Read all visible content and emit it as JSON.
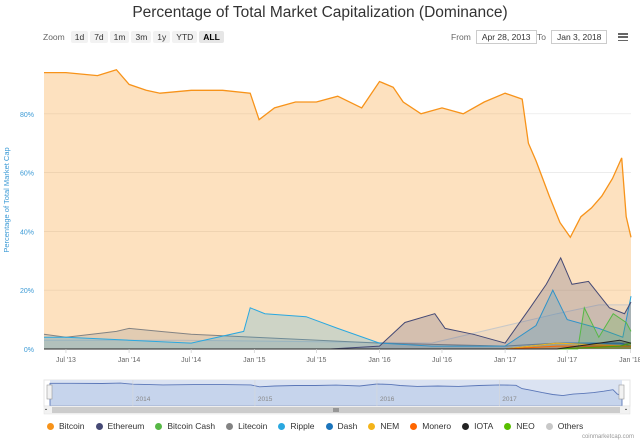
{
  "title": "Percentage of Total Market Capitalization (Dominance)",
  "zoom": {
    "label": "Zoom",
    "buttons": [
      "1d",
      "7d",
      "1m",
      "3m",
      "1y",
      "YTD",
      "ALL"
    ],
    "active": "ALL"
  },
  "range": {
    "from_label": "From",
    "from_value": "Apr 28, 2013",
    "to_label": "To",
    "to_value": "Jan 3, 2018"
  },
  "menu_icon": "hamburger-icon",
  "credit": "coinmarketcap.com",
  "navigator": {
    "years": [
      "2014",
      "2015",
      "2016",
      "2017"
    ],
    "handle_icon": "grip-icon"
  },
  "chart_data": {
    "type": "area",
    "title": "Percentage of Total Market Capitalization (Dominance)",
    "ylabel": "Percentage of Total Market Cap",
    "ylim": [
      0,
      100
    ],
    "y_ticks": [
      "0%",
      "20%",
      "40%",
      "60%",
      "80%"
    ],
    "x_ticks": [
      "Jul '13",
      "Jan '14",
      "Jul '14",
      "Jan '15",
      "Jul '15",
      "Jan '16",
      "Jul '16",
      "Jan '17",
      "Jul '17",
      "Jan '18"
    ],
    "x_range": [
      "2013-04-28",
      "2018-01-03"
    ],
    "grid": true,
    "legend_position": "bottom",
    "series": [
      {
        "name": "Bitcoin",
        "color": "#f7931a",
        "x": [
          "2013-04-28",
          "2013-07-01",
          "2013-10-01",
          "2013-11-25",
          "2014-01-01",
          "2014-02-20",
          "2014-04-01",
          "2014-07-01",
          "2014-10-01",
          "2014-12-20",
          "2015-01-15",
          "2015-03-01",
          "2015-05-01",
          "2015-07-01",
          "2015-09-01",
          "2015-11-10",
          "2016-01-01",
          "2016-02-10",
          "2016-03-10",
          "2016-05-01",
          "2016-07-01",
          "2016-09-01",
          "2016-11-01",
          "2017-01-01",
          "2017-02-20",
          "2017-03-10",
          "2017-04-01",
          "2017-05-10",
          "2017-06-10",
          "2017-07-10",
          "2017-08-10",
          "2017-09-10",
          "2017-10-10",
          "2017-11-10",
          "2017-12-07",
          "2017-12-20",
          "2018-01-03"
        ],
        "values": [
          94,
          94,
          93,
          95,
          90,
          88,
          87,
          88,
          88,
          87,
          78,
          82,
          84,
          84,
          86,
          82,
          91,
          89,
          84,
          80,
          82,
          80,
          84,
          87,
          85,
          70,
          64,
          52,
          43,
          38,
          45,
          48,
          52,
          58,
          65,
          45,
          38
        ]
      },
      {
        "name": "Ethereum",
        "color": "#464a75",
        "x": [
          "2013-04-28",
          "2015-08-10",
          "2016-01-01",
          "2016-03-15",
          "2016-06-10",
          "2016-07-10",
          "2016-10-01",
          "2017-01-01",
          "2017-03-15",
          "2017-05-01",
          "2017-06-12",
          "2017-07-15",
          "2017-09-01",
          "2017-11-01",
          "2017-12-15",
          "2018-01-03"
        ],
        "values": [
          0,
          0,
          1,
          9,
          12,
          7,
          5,
          2,
          14,
          22,
          31,
          22,
          23,
          14,
          12,
          16
        ]
      },
      {
        "name": "Bitcoin Cash",
        "color": "#57b846",
        "x": [
          "2013-04-28",
          "2017-08-01",
          "2017-08-20",
          "2017-10-01",
          "2017-11-12",
          "2017-12-20",
          "2018-01-03"
        ],
        "values": [
          0,
          0,
          14,
          4,
          12,
          9,
          6
        ]
      },
      {
        "name": "Litecoin",
        "color": "#838383",
        "x": [
          "2013-04-28",
          "2013-07-01",
          "2013-11-25",
          "2014-01-01",
          "2014-04-01",
          "2014-07-01",
          "2015-01-01",
          "2016-01-01",
          "2017-01-01",
          "2017-06-01",
          "2017-12-15",
          "2018-01-03"
        ],
        "values": [
          5,
          4,
          6,
          7,
          6,
          5,
          4,
          2,
          1,
          2,
          2,
          2
        ]
      },
      {
        "name": "Ripple",
        "color": "#2aa8e0",
        "x": [
          "2013-04-28",
          "2013-07-01",
          "2014-01-01",
          "2014-07-01",
          "2014-12-01",
          "2014-12-20",
          "2015-02-01",
          "2015-06-01",
          "2015-09-01",
          "2016-01-01",
          "2016-06-01",
          "2017-01-01",
          "2017-04-01",
          "2017-05-20",
          "2017-07-01",
          "2017-10-01",
          "2017-12-10",
          "2018-01-03"
        ],
        "values": [
          4,
          4,
          3,
          2,
          6,
          14,
          12,
          11,
          7,
          2,
          1,
          1,
          8,
          20,
          10,
          7,
          4,
          18
        ]
      },
      {
        "name": "Dash",
        "color": "#1c75bc",
        "x": [
          "2013-04-28",
          "2017-01-01",
          "2017-06-01",
          "2017-12-01",
          "2018-01-03"
        ],
        "values": [
          0,
          0,
          2,
          2,
          1
        ]
      },
      {
        "name": "NEM",
        "color": "#f4b41a",
        "x": [
          "2013-04-28",
          "2017-01-01",
          "2017-06-01",
          "2018-01-03"
        ],
        "values": [
          0,
          0,
          2,
          1
        ]
      },
      {
        "name": "Monero",
        "color": "#ff6600",
        "x": [
          "2013-04-28",
          "2017-01-01",
          "2017-06-01",
          "2018-01-03"
        ],
        "values": [
          0,
          0,
          1,
          1
        ]
      },
      {
        "name": "IOTA",
        "color": "#242424",
        "x": [
          "2013-04-28",
          "2017-06-01",
          "2017-12-01",
          "2018-01-03"
        ],
        "values": [
          0,
          0,
          3,
          2
        ]
      },
      {
        "name": "NEO",
        "color": "#58bf00",
        "x": [
          "2013-04-28",
          "2017-06-01",
          "2017-12-01",
          "2018-01-03"
        ],
        "values": [
          0,
          0,
          1,
          2
        ]
      },
      {
        "name": "Others",
        "color": "#c8c8c8",
        "x": [
          "2013-04-28",
          "2014-06-01",
          "2016-06-01",
          "2017-06-01",
          "2017-10-01",
          "2018-01-03"
        ],
        "values": [
          3,
          3,
          2,
          12,
          15,
          15
        ]
      }
    ]
  }
}
